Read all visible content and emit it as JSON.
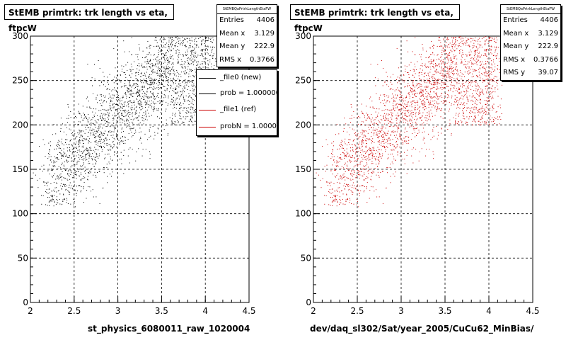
{
  "colors": {
    "dots_left": "#000000",
    "dots_right": "#cc0000",
    "ref_line": "#cc0000"
  },
  "footer_note": "",
  "pads": [
    {
      "title": "StEMB primtrk: trk length vs eta, ftpcW",
      "stats_header": "StEMBQaPrtrkLengthEtaFW",
      "stats": [
        {
          "label": "Entries",
          "value": "4406"
        },
        {
          "label": "Mean x",
          "value": "3.129"
        },
        {
          "label": "Mean y",
          "value": "222.9"
        },
        {
          "label": "RMS x",
          "value": "0.3766"
        }
      ],
      "legend": [
        {
          "label": "_file0 (new)",
          "color": "#000000"
        },
        {
          "label": "prob = 1.000000",
          "color": "#000000"
        },
        {
          "label": "_file1 (ref)",
          "color": "#cc0000"
        },
        {
          "label": "probN = 1.000000",
          "color": "#cc0000"
        }
      ],
      "xtitle": "st_physics_6080011_raw_1020004"
    },
    {
      "title": "StEMB primtrk: trk length vs eta, ftpcW",
      "stats_header": "StEMBQaPrtrkLengthEtaFW",
      "stats": [
        {
          "label": "Entries",
          "value": "4406"
        },
        {
          "label": "Mean x",
          "value": "3.129"
        },
        {
          "label": "Mean y",
          "value": "222.9"
        },
        {
          "label": "RMS x",
          "value": "0.3766"
        },
        {
          "label": "RMS y",
          "value": "39.07"
        }
      ],
      "xtitle": "dev/daq_sl302/Sat/year_2005/CuCu62_MinBias/"
    }
  ],
  "chart_data": [
    {
      "type": "scatter",
      "title": "StEMB primtrk: trk length vs eta, ftpcW",
      "xlabel": "st_physics_6080011_raw_1020004",
      "ylabel": "",
      "xlim": [
        2,
        4.5
      ],
      "ylim": [
        0,
        300
      ],
      "xticks": [
        "2",
        "2.5",
        "3",
        "3.5",
        "4",
        "4.5"
      ],
      "yticks": [
        "0",
        "50",
        "100",
        "150",
        "200",
        "250",
        "300"
      ],
      "grid": true,
      "series": [
        {
          "name": "_file0 (new)",
          "color": "#000000",
          "n_points": 4406,
          "mean_x": 3.129,
          "mean_y": 222.9,
          "rms_x": 0.3766,
          "rms_y": 39.07
        }
      ]
    },
    {
      "type": "scatter",
      "title": "StEMB primtrk: trk length vs eta, ftpcW",
      "xlabel": "dev/daq_sl302/Sat/year_2005/CuCu62_MinBias/",
      "ylabel": "",
      "xlim": [
        2,
        4.5
      ],
      "ylim": [
        0,
        300
      ],
      "xticks": [
        "2",
        "2.5",
        "3",
        "3.5",
        "4",
        "4.5"
      ],
      "yticks": [
        "0",
        "50",
        "100",
        "150",
        "200",
        "250",
        "300"
      ],
      "grid": true,
      "series": [
        {
          "name": "_file1 (ref)",
          "color": "#cc0000",
          "n_points": 4406,
          "mean_x": 3.129,
          "mean_y": 222.9,
          "rms_x": 0.3766,
          "rms_y": 39.07
        }
      ]
    }
  ]
}
